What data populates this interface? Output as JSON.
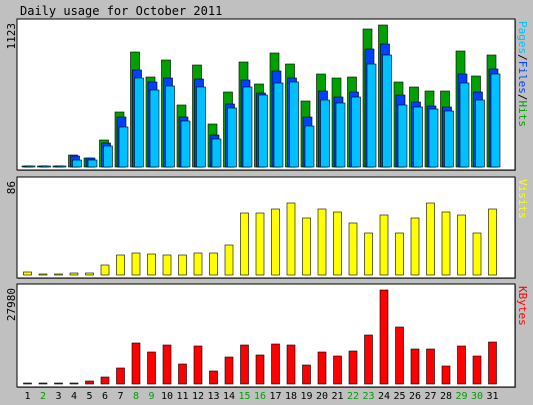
{
  "title": "Daily usage for October 2011",
  "colors": {
    "background": "#c0c0c0",
    "panel": "#ffffff",
    "hits": "#00a000",
    "files": "#0040ff",
    "pages": "#00c0ff",
    "visits": "#ffff00",
    "kbytes": "#ff0000",
    "weekday_label": "#000000",
    "weekend_label": "#00a000"
  },
  "chart_data": [
    {
      "type": "bar",
      "panel": "hits",
      "ymax_label": "1123",
      "ylim": [
        0,
        1123
      ],
      "legend": [
        {
          "text": "Pages",
          "color": "#00c0ff"
        },
        {
          "text": "/",
          "color": "#000000"
        },
        {
          "text": "Files",
          "color": "#0040ff"
        },
        {
          "text": "/",
          "color": "#000000"
        },
        {
          "text": "Hits",
          "color": "#00a000"
        }
      ],
      "categories": [
        "1",
        "2",
        "3",
        "4",
        "5",
        "6",
        "7",
        "8",
        "9",
        "10",
        "11",
        "12",
        "13",
        "14",
        "15",
        "16",
        "17",
        "18",
        "19",
        "20",
        "21",
        "22",
        "23",
        "24",
        "25",
        "26",
        "27",
        "28",
        "29",
        "30",
        "31"
      ],
      "series": [
        {
          "name": "Hits",
          "color": "#00a000",
          "values": [
            3,
            3,
            3,
            96,
            75,
            215,
            432,
            913,
            714,
            844,
            494,
            810,
            339,
            597,
            832,
            660,
            905,
            813,
            521,
            733,
            700,
            713,
            1093,
            1123,
            672,
            630,
            602,
            602,
            919,
            717,
            886
          ]
        },
        {
          "name": "Files",
          "color": "#0040ff",
          "values": [
            3,
            3,
            3,
            89,
            68,
            186,
            395,
            770,
            670,
            706,
            393,
            693,
            250,
            502,
            686,
            587,
            760,
            703,
            392,
            598,
            556,
            594,
            935,
            969,
            566,
            514,
            486,
            474,
            734,
            596,
            775
          ]
        },
        {
          "name": "Pages",
          "color": "#00c0ff",
          "values": [
            3,
            3,
            3,
            59,
            58,
            163,
            320,
            700,
            606,
            638,
            360,
            633,
            225,
            463,
            634,
            566,
            665,
            672,
            325,
            533,
            506,
            553,
            812,
            883,
            491,
            473,
            460,
            442,
            661,
            533,
            735
          ]
        }
      ]
    },
    {
      "type": "bar",
      "panel": "visits",
      "ymax_label": "86",
      "ylim": [
        0,
        86
      ],
      "legend": [
        {
          "text": "Visits",
          "color": "#ffff00"
        }
      ],
      "categories": [
        "1",
        "2",
        "3",
        "4",
        "5",
        "6",
        "7",
        "8",
        "9",
        "10",
        "11",
        "12",
        "13",
        "14",
        "15",
        "16",
        "17",
        "18",
        "19",
        "20",
        "21",
        "22",
        "23",
        "24",
        "25",
        "26",
        "27",
        "28",
        "29",
        "30",
        "31"
      ],
      "series": [
        {
          "name": "Visits",
          "color": "#ffff00",
          "values": [
            3,
            1,
            1,
            2,
            2,
            9,
            19,
            21,
            20,
            19,
            19,
            21,
            21,
            28,
            58,
            58,
            62,
            67,
            53,
            62,
            59,
            49,
            39,
            56,
            39,
            53,
            67,
            59,
            56,
            39,
            62
          ]
        }
      ]
    },
    {
      "type": "bar",
      "panel": "kbytes",
      "ymax_label": "27980",
      "ylim": [
        0,
        27980
      ],
      "legend": [
        {
          "text": "KBytes",
          "color": "#ff0000"
        }
      ],
      "categories": [
        "1",
        "2",
        "3",
        "4",
        "5",
        "6",
        "7",
        "8",
        "9",
        "10",
        "11",
        "12",
        "13",
        "14",
        "15",
        "16",
        "17",
        "18",
        "19",
        "20",
        "21",
        "22",
        "23",
        "24",
        "25",
        "26",
        "27",
        "28",
        "29",
        "30",
        "31"
      ],
      "series": [
        {
          "name": "KBytes",
          "color": "#ff0000",
          "values": [
            100,
            100,
            100,
            400,
            900,
            2200,
            4800,
            12200,
            9500,
            11600,
            6000,
            11300,
            3900,
            8000,
            11600,
            8600,
            11800,
            11600,
            5700,
            9500,
            8300,
            9800,
            14700,
            27980,
            17000,
            10400,
            10400,
            5500,
            11300,
            8300,
            12400
          ]
        }
      ]
    }
  ],
  "x_labels": [
    {
      "text": "1",
      "weekend": false
    },
    {
      "text": "2",
      "weekend": true
    },
    {
      "text": "3",
      "weekend": false
    },
    {
      "text": "4",
      "weekend": false
    },
    {
      "text": "5",
      "weekend": false
    },
    {
      "text": "6",
      "weekend": false
    },
    {
      "text": "7",
      "weekend": false
    },
    {
      "text": "8",
      "weekend": true
    },
    {
      "text": "9",
      "weekend": true
    },
    {
      "text": "10",
      "weekend": false
    },
    {
      "text": "11",
      "weekend": false
    },
    {
      "text": "12",
      "weekend": false
    },
    {
      "text": "13",
      "weekend": false
    },
    {
      "text": "14",
      "weekend": false
    },
    {
      "text": "15",
      "weekend": true
    },
    {
      "text": "16",
      "weekend": true
    },
    {
      "text": "17",
      "weekend": false
    },
    {
      "text": "18",
      "weekend": false
    },
    {
      "text": "19",
      "weekend": false
    },
    {
      "text": "20",
      "weekend": false
    },
    {
      "text": "21",
      "weekend": false
    },
    {
      "text": "22",
      "weekend": true
    },
    {
      "text": "23",
      "weekend": true
    },
    {
      "text": "24",
      "weekend": false
    },
    {
      "text": "25",
      "weekend": false
    },
    {
      "text": "26",
      "weekend": false
    },
    {
      "text": "27",
      "weekend": false
    },
    {
      "text": "28",
      "weekend": false
    },
    {
      "text": "29",
      "weekend": true
    },
    {
      "text": "30",
      "weekend": true
    },
    {
      "text": "31",
      "weekend": false
    }
  ]
}
